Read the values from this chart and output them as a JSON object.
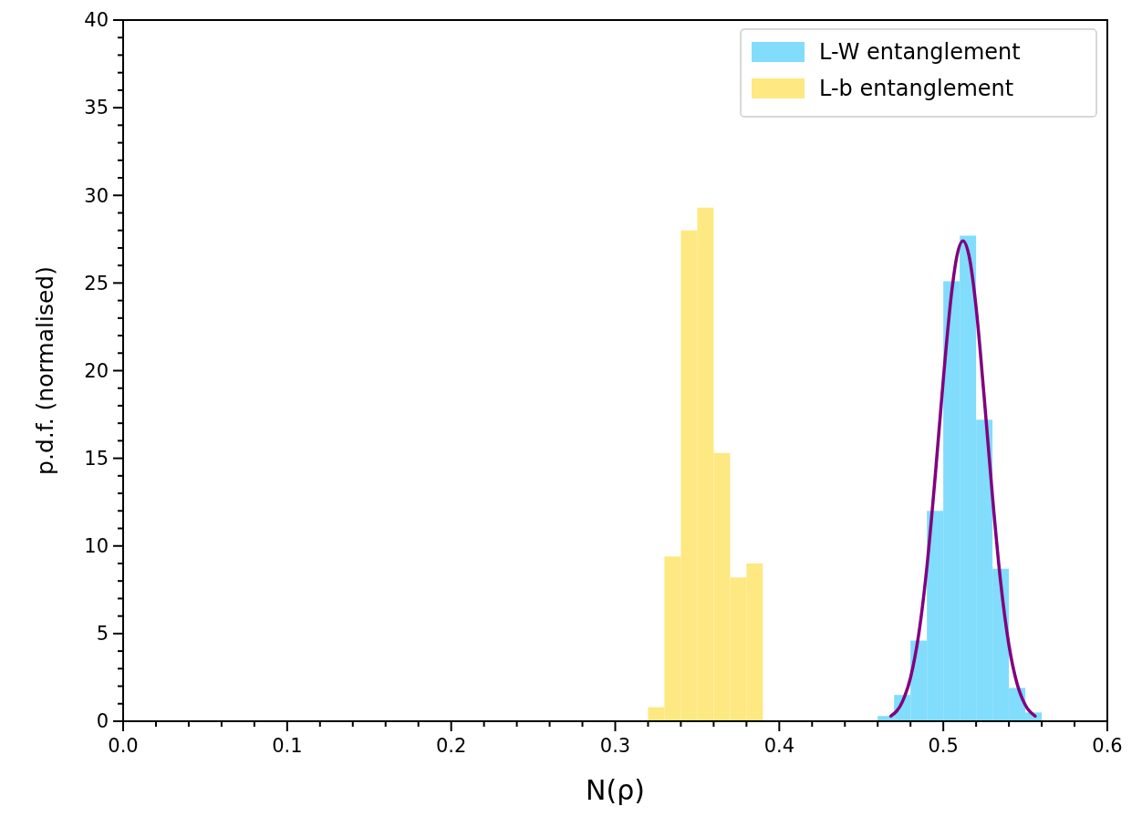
{
  "chart_data": {
    "type": "histogram",
    "xlabel": "N(ρ)",
    "ylabel": "p.d.f. (normalised)",
    "xlim": [
      0,
      0.6
    ],
    "ylim": [
      0,
      40
    ],
    "xticks": [
      {
        "value": 0,
        "label": "0.0"
      },
      {
        "value": 0.02,
        "label": null
      },
      {
        "value": 0.04,
        "label": null
      },
      {
        "value": 0.06,
        "label": null
      },
      {
        "value": 0.08,
        "label": null
      },
      {
        "value": 0.1,
        "label": "0.1"
      },
      {
        "value": 0.12,
        "label": null
      },
      {
        "value": 0.14,
        "label": null
      },
      {
        "value": 0.16,
        "label": null
      },
      {
        "value": 0.18,
        "label": null
      },
      {
        "value": 0.2,
        "label": "0.2"
      },
      {
        "value": 0.22,
        "label": null
      },
      {
        "value": 0.24,
        "label": null
      },
      {
        "value": 0.26,
        "label": null
      },
      {
        "value": 0.28,
        "label": null
      },
      {
        "value": 0.3,
        "label": "0.3"
      },
      {
        "value": 0.32,
        "label": null
      },
      {
        "value": 0.34,
        "label": null
      },
      {
        "value": 0.36,
        "label": null
      },
      {
        "value": 0.38,
        "label": null
      },
      {
        "value": 0.4,
        "label": "0.4"
      },
      {
        "value": 0.42,
        "label": null
      },
      {
        "value": 0.44,
        "label": null
      },
      {
        "value": 0.46,
        "label": null
      },
      {
        "value": 0.48,
        "label": null
      },
      {
        "value": 0.5,
        "label": "0.5"
      },
      {
        "value": 0.52,
        "label": null
      },
      {
        "value": 0.54,
        "label": null
      },
      {
        "value": 0.56,
        "label": null
      },
      {
        "value": 0.58,
        "label": null
      },
      {
        "value": 0.6,
        "label": "0.6"
      }
    ],
    "yticks": [
      0,
      {
        "value": 1,
        "label": null
      },
      {
        "value": 2,
        "label": null
      },
      {
        "value": 3,
        "label": null
      },
      {
        "value": 4,
        "label": null
      },
      5,
      {
        "value": 6,
        "label": null
      },
      {
        "value": 7,
        "label": null
      },
      {
        "value": 8,
        "label": null
      },
      {
        "value": 9,
        "label": null
      },
      10,
      {
        "value": 11,
        "label": null
      },
      {
        "value": 12,
        "label": null
      },
      {
        "value": 13,
        "label": null
      },
      {
        "value": 14,
        "label": null
      },
      15,
      {
        "value": 16,
        "label": null
      },
      {
        "value": 17,
        "label": null
      },
      {
        "value": 18,
        "label": null
      },
      {
        "value": 19,
        "label": null
      },
      20,
      {
        "value": 21,
        "label": null
      },
      {
        "value": 22,
        "label": null
      },
      {
        "value": 23,
        "label": null
      },
      {
        "value": 24,
        "label": null
      },
      25,
      {
        "value": 26,
        "label": null
      },
      {
        "value": 27,
        "label": null
      },
      {
        "value": 28,
        "label": null
      },
      {
        "value": 29,
        "label": null
      },
      30,
      {
        "value": 31,
        "label": null
      },
      {
        "value": 32,
        "label": null
      },
      {
        "value": 33,
        "label": null
      },
      {
        "value": 34,
        "label": null
      },
      35,
      {
        "value": 36,
        "label": null
      },
      {
        "value": 37,
        "label": null
      },
      {
        "value": 38,
        "label": null
      },
      {
        "value": 39,
        "label": null
      },
      40
    ],
    "legend": "top right",
    "grid": false,
    "series": [
      {
        "name": "L-W entanglement",
        "color": "#82dcfc",
        "bins": [
          0.46,
          0.47,
          0.48,
          0.49,
          0.5,
          0.51,
          0.52,
          0.53,
          0.54,
          0.55,
          0.56
        ],
        "values": [
          0.3,
          1.5,
          4.6,
          12.0,
          25.1,
          27.7,
          17.2,
          8.7,
          1.9,
          0.5
        ]
      },
      {
        "name": "L-b entanglement",
        "color": "#fde882",
        "bins": [
          0.32,
          0.33,
          0.34,
          0.35,
          0.36,
          0.37,
          0.38,
          0.39
        ],
        "values": [
          0.8,
          9.4,
          28.0,
          29.3,
          15.3,
          8.2,
          9.0
        ]
      },
      {
        "type": "line",
        "color": "#800080",
        "x": [
          0.468,
          0.475,
          0.48,
          0.485,
          0.49,
          0.495,
          0.5,
          0.505,
          0.508,
          0.512,
          0.516,
          0.52,
          0.525,
          0.53,
          0.535,
          0.54,
          0.545,
          0.55,
          0.556
        ],
        "values": [
          0.29,
          1.1,
          2.48,
          4.95,
          8.8,
          13.9,
          19.5,
          24.4,
          26.4,
          27.4,
          26.4,
          23.6,
          18.4,
          12.8,
          7.9,
          4.35,
          2.13,
          0.92,
          0.29
        ]
      }
    ]
  }
}
